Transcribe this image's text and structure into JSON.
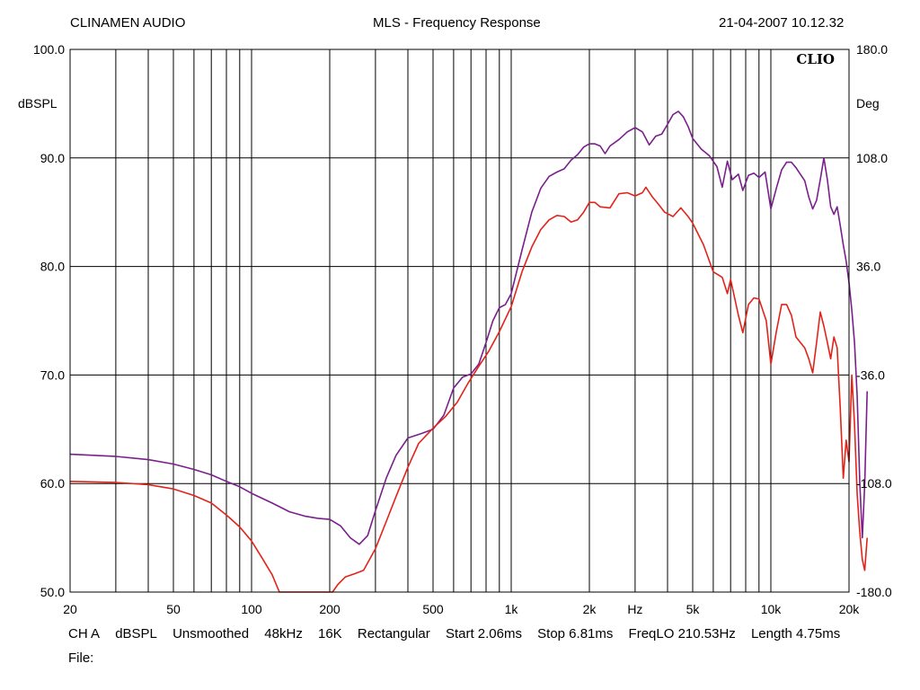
{
  "header": {
    "app_name": "CLINAMEN AUDIO",
    "title": "MLS - Frequency Response",
    "timestamp": "21-04-2007 10.12.32"
  },
  "chart_data": {
    "type": "line",
    "title": "MLS - Frequency Response",
    "brand_label": "CLIO",
    "xlabel": "Hz",
    "x_scale": "log",
    "xlim": [
      20,
      20000
    ],
    "x_tick_labels": [
      {
        "value": 20,
        "label": "20"
      },
      {
        "value": 50,
        "label": "50"
      },
      {
        "value": 100,
        "label": "100"
      },
      {
        "value": 200,
        "label": "200"
      },
      {
        "value": 500,
        "label": "500"
      },
      {
        "value": 1000,
        "label": "1k"
      },
      {
        "value": 2000,
        "label": "2k"
      },
      {
        "value": 5000,
        "label": "5k"
      },
      {
        "value": 10000,
        "label": "10k"
      },
      {
        "value": 20000,
        "label": "20k"
      }
    ],
    "ylabel_left": "dBSPL",
    "ylim_left": [
      50,
      100
    ],
    "y_ticks_left": [
      "100.0",
      "90.0",
      "80.0",
      "70.0",
      "60.0",
      "50.0"
    ],
    "ylabel_right": "Deg",
    "ylim_right": [
      -180,
      180
    ],
    "y_ticks_right": [
      "180.0",
      "108.0",
      "36.0",
      "-36.0",
      "-108.0",
      "-180.0"
    ],
    "grid": true,
    "series": [
      {
        "color": "#7a1f8c",
        "points": [
          [
            20,
            62.7
          ],
          [
            30,
            62.5
          ],
          [
            40,
            62.2
          ],
          [
            50,
            61.8
          ],
          [
            60,
            61.3
          ],
          [
            70,
            60.8
          ],
          [
            80,
            60.2
          ],
          [
            90,
            59.7
          ],
          [
            100,
            59.1
          ],
          [
            120,
            58.2
          ],
          [
            140,
            57.4
          ],
          [
            160,
            57.0
          ],
          [
            180,
            56.8
          ],
          [
            200,
            56.7
          ],
          [
            220,
            56.1
          ],
          [
            240,
            55.0
          ],
          [
            260,
            54.4
          ],
          [
            280,
            55.2
          ],
          [
            300,
            57.5
          ],
          [
            330,
            60.5
          ],
          [
            360,
            62.6
          ],
          [
            400,
            64.2
          ],
          [
            450,
            64.6
          ],
          [
            500,
            65.0
          ],
          [
            550,
            66.3
          ],
          [
            600,
            68.8
          ],
          [
            650,
            69.8
          ],
          [
            700,
            70.1
          ],
          [
            750,
            71.0
          ],
          [
            800,
            73.0
          ],
          [
            850,
            75.0
          ],
          [
            900,
            76.2
          ],
          [
            950,
            76.5
          ],
          [
            1000,
            77.5
          ],
          [
            1100,
            81.5
          ],
          [
            1200,
            85.0
          ],
          [
            1300,
            87.2
          ],
          [
            1400,
            88.3
          ],
          [
            1500,
            88.7
          ],
          [
            1600,
            89.0
          ],
          [
            1700,
            89.8
          ],
          [
            1800,
            90.3
          ],
          [
            1900,
            91.0
          ],
          [
            2000,
            91.3
          ],
          [
            2100,
            91.3
          ],
          [
            2200,
            91.1
          ],
          [
            2300,
            90.4
          ],
          [
            2400,
            91.1
          ],
          [
            2600,
            91.7
          ],
          [
            2800,
            92.4
          ],
          [
            3000,
            92.8
          ],
          [
            3200,
            92.4
          ],
          [
            3400,
            91.2
          ],
          [
            3600,
            92.0
          ],
          [
            3800,
            92.2
          ],
          [
            4000,
            93.1
          ],
          [
            4200,
            94.0
          ],
          [
            4400,
            94.3
          ],
          [
            4600,
            93.8
          ],
          [
            4800,
            92.9
          ],
          [
            5000,
            91.8
          ],
          [
            5400,
            90.8
          ],
          [
            5800,
            90.2
          ],
          [
            6200,
            89.2
          ],
          [
            6500,
            87.3
          ],
          [
            6800,
            89.7
          ],
          [
            7100,
            88.0
          ],
          [
            7500,
            88.5
          ],
          [
            7800,
            87.0
          ],
          [
            8200,
            88.4
          ],
          [
            8600,
            88.6
          ],
          [
            9000,
            88.2
          ],
          [
            9500,
            88.7
          ],
          [
            10000,
            85.3
          ],
          [
            10500,
            87.2
          ],
          [
            11000,
            88.9
          ],
          [
            11500,
            89.6
          ],
          [
            12000,
            89.6
          ],
          [
            12500,
            89.1
          ],
          [
            13500,
            87.9
          ],
          [
            14000,
            86.4
          ],
          [
            14500,
            85.3
          ],
          [
            15000,
            86.1
          ],
          [
            15500,
            88.0
          ],
          [
            16000,
            90.0
          ],
          [
            16500,
            88.0
          ],
          [
            17000,
            85.5
          ],
          [
            17500,
            84.8
          ],
          [
            18000,
            85.5
          ],
          [
            18500,
            83.8
          ],
          [
            19000,
            82.0
          ],
          [
            19500,
            80.5
          ],
          [
            20000,
            78.5
          ],
          [
            20500,
            76.0
          ],
          [
            21000,
            73.0
          ],
          [
            21500,
            68.0
          ],
          [
            22000,
            60.0
          ],
          [
            22500,
            55.0
          ],
          [
            23000,
            60.0
          ],
          [
            23500,
            68.5
          ]
        ]
      },
      {
        "color": "#e2231a",
        "points": [
          [
            20,
            60.2
          ],
          [
            30,
            60.1
          ],
          [
            40,
            59.9
          ],
          [
            50,
            59.5
          ],
          [
            60,
            58.9
          ],
          [
            70,
            58.2
          ],
          [
            80,
            57.1
          ],
          [
            90,
            56.0
          ],
          [
            100,
            54.7
          ],
          [
            110,
            53.1
          ],
          [
            120,
            51.6
          ],
          [
            128,
            50.0
          ],
          [
            205,
            50.0
          ],
          [
            215,
            50.7
          ],
          [
            230,
            51.4
          ],
          [
            250,
            51.7
          ],
          [
            270,
            52.0
          ],
          [
            300,
            54.0
          ],
          [
            330,
            56.5
          ],
          [
            360,
            58.8
          ],
          [
            400,
            61.5
          ],
          [
            440,
            63.7
          ],
          [
            500,
            65.1
          ],
          [
            560,
            66.2
          ],
          [
            620,
            67.5
          ],
          [
            680,
            69.2
          ],
          [
            750,
            70.8
          ],
          [
            820,
            72.2
          ],
          [
            900,
            74.0
          ],
          [
            1000,
            76.3
          ],
          [
            1100,
            79.5
          ],
          [
            1200,
            81.8
          ],
          [
            1300,
            83.4
          ],
          [
            1400,
            84.3
          ],
          [
            1500,
            84.7
          ],
          [
            1600,
            84.6
          ],
          [
            1700,
            84.1
          ],
          [
            1800,
            84.3
          ],
          [
            1900,
            85.0
          ],
          [
            2000,
            85.9
          ],
          [
            2100,
            85.9
          ],
          [
            2200,
            85.5
          ],
          [
            2400,
            85.4
          ],
          [
            2600,
            86.7
          ],
          [
            2800,
            86.8
          ],
          [
            3000,
            86.5
          ],
          [
            3200,
            86.8
          ],
          [
            3300,
            87.3
          ],
          [
            3500,
            86.4
          ],
          [
            3700,
            85.7
          ],
          [
            3900,
            85.0
          ],
          [
            4200,
            84.6
          ],
          [
            4500,
            85.4
          ],
          [
            4800,
            84.6
          ],
          [
            5000,
            84.0
          ],
          [
            5500,
            82.0
          ],
          [
            6000,
            79.5
          ],
          [
            6500,
            79.0
          ],
          [
            6800,
            77.5
          ],
          [
            7000,
            78.8
          ],
          [
            7500,
            75.5
          ],
          [
            7800,
            73.9
          ],
          [
            8200,
            76.5
          ],
          [
            8600,
            77.1
          ],
          [
            9000,
            77.0
          ],
          [
            9600,
            75.0
          ],
          [
            10000,
            71.0
          ],
          [
            10500,
            74.0
          ],
          [
            11000,
            76.5
          ],
          [
            11500,
            76.5
          ],
          [
            12000,
            75.5
          ],
          [
            12500,
            73.5
          ],
          [
            13500,
            72.5
          ],
          [
            14000,
            71.5
          ],
          [
            14500,
            70.2
          ],
          [
            15000,
            73.0
          ],
          [
            15500,
            75.8
          ],
          [
            16000,
            74.5
          ],
          [
            16500,
            73.0
          ],
          [
            17000,
            71.5
          ],
          [
            17500,
            73.5
          ],
          [
            18000,
            72.5
          ],
          [
            18500,
            67.0
          ],
          [
            19000,
            60.5
          ],
          [
            19500,
            64.0
          ],
          [
            20000,
            62.0
          ],
          [
            20500,
            70.0
          ],
          [
            21000,
            65.5
          ],
          [
            21500,
            59.0
          ],
          [
            22000,
            55.5
          ],
          [
            22500,
            53.0
          ],
          [
            23000,
            52.0
          ],
          [
            23500,
            55.0
          ]
        ]
      }
    ]
  },
  "footer": {
    "params": [
      "CH A",
      "dBSPL",
      "Unsmoothed",
      "48kHz",
      "16K",
      "Rectangular",
      "Start 2.06ms",
      "Stop 6.81ms",
      "FreqLO 210.53Hz",
      "Length 4.75ms"
    ],
    "file_label": "File:"
  }
}
